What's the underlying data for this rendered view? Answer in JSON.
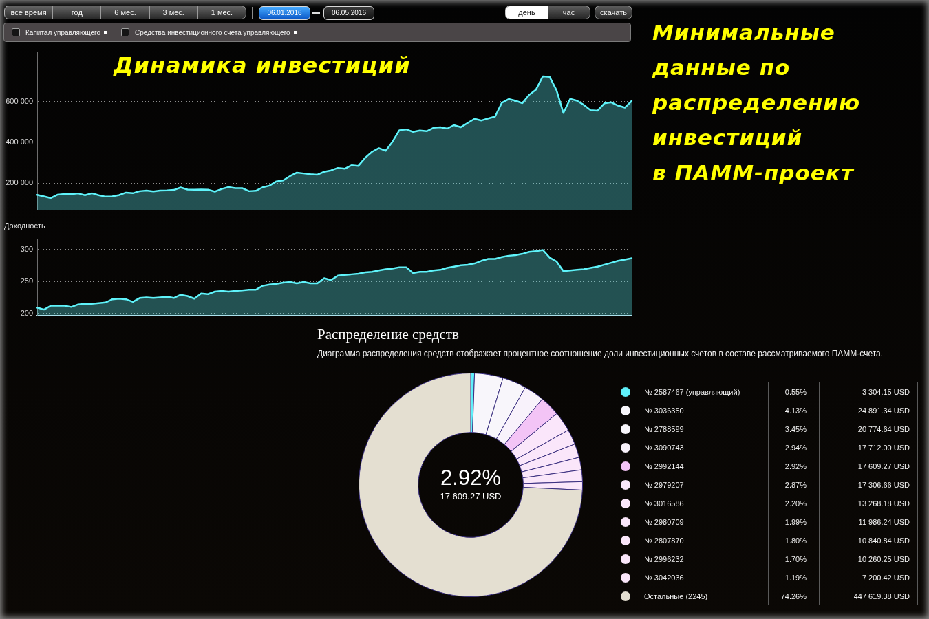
{
  "chart_data": [
    {
      "type": "area",
      "title": "Динамика инвестиций",
      "categories": [
        null,
        null,
        null,
        null,
        null,
        null,
        null,
        null,
        null,
        null,
        null,
        null,
        null,
        null,
        null,
        null,
        null,
        null,
        null,
        null,
        null,
        null,
        null,
        null,
        null,
        null,
        null,
        null,
        null,
        null,
        null,
        null,
        null,
        null,
        null,
        null,
        null,
        null,
        null,
        null,
        null,
        null,
        null,
        null,
        null,
        null,
        null,
        null,
        null,
        null,
        null,
        null,
        null,
        null,
        null,
        null,
        null,
        null,
        null,
        null,
        null,
        null,
        null,
        null,
        null,
        null,
        null,
        null,
        null,
        null,
        null,
        null,
        null,
        null,
        null,
        null,
        null,
        null,
        null,
        null,
        null,
        null,
        null,
        null,
        null,
        null,
        null,
        null
      ],
      "values": [
        142000,
        134000,
        126000,
        143000,
        146000,
        145000,
        149000,
        140000,
        150000,
        140000,
        133000,
        134000,
        141000,
        153000,
        150000,
        160000,
        163000,
        159000,
        163000,
        164000,
        166000,
        178000,
        168000,
        167000,
        168000,
        167000,
        158000,
        171000,
        180000,
        175000,
        175000,
        160000,
        162000,
        179000,
        187000,
        208000,
        213000,
        234000,
        251000,
        247000,
        243000,
        241000,
        255000,
        262000,
        274000,
        270000,
        287000,
        284000,
        324000,
        353000,
        371000,
        358000,
        403000,
        459000,
        463000,
        451000,
        458000,
        454000,
        471000,
        474000,
        467000,
        484000,
        474000,
        495000,
        515000,
        507000,
        517000,
        526000,
        594000,
        612000,
        604000,
        592000,
        633000,
        659000,
        724000,
        721000,
        655000,
        544000,
        613000,
        604000,
        583000,
        557000,
        555000,
        591000,
        596000,
        580000,
        570000,
        603000
      ],
      "color": "#5ff3fa",
      "ylim": [
        67000,
        840000
      ],
      "yticks": [
        {
          "value": 200000,
          "label": "200 000"
        },
        {
          "value": 400000,
          "label": "400 000"
        },
        {
          "value": 600000,
          "label": "600 000"
        }
      ],
      "grid": "y",
      "annotations": [
        "все время",
        "год",
        "6 мес.",
        "3 мес.",
        "1 мес.",
        "06.01.2016",
        "06.05.2016",
        "день",
        "час",
        "скачать",
        "Капитал управляющего",
        "Средства инвестиционного счета управляющего"
      ]
    },
    {
      "type": "other",
      "title": "Минимальные\nданные по\nраспределению\nинвестиций\nв ПАММ-проект"
    },
    {
      "type": "area",
      "ylabel": "Доходность",
      "categories": [
        null,
        null,
        null,
        null,
        null,
        null,
        null,
        null,
        null,
        null,
        null,
        null,
        null,
        null,
        null,
        null,
        null,
        null,
        null,
        null,
        null,
        null,
        null,
        null,
        null,
        null,
        null,
        null,
        null,
        null,
        null,
        null,
        null,
        null,
        null,
        null,
        null,
        null,
        null,
        null,
        null,
        null,
        null,
        null,
        null,
        null,
        null,
        null,
        null,
        null,
        null,
        null,
        null,
        null,
        null,
        null,
        null,
        null,
        null,
        null,
        null,
        null,
        null,
        null,
        null,
        null,
        null,
        null,
        null,
        null,
        null,
        null,
        null,
        null,
        null,
        null,
        null,
        null,
        null,
        null,
        null,
        null,
        null,
        null,
        null,
        null,
        null,
        null
      ],
      "values": [
        209,
        206,
        212,
        212,
        212,
        210,
        214,
        215,
        215,
        216,
        217,
        222,
        223,
        222,
        218,
        224,
        225,
        224,
        225,
        226,
        224,
        229,
        227,
        223,
        231,
        230,
        234,
        235,
        234,
        235,
        236,
        237,
        237,
        243,
        245,
        246,
        248,
        249,
        247,
        249,
        247,
        247,
        255,
        252,
        259,
        260,
        261,
        262,
        264,
        265,
        267,
        269,
        270,
        272,
        272,
        263,
        265,
        265,
        267,
        268,
        271,
        273,
        275,
        276,
        278,
        282,
        285,
        285,
        288,
        290,
        291,
        293,
        296,
        297,
        299,
        287,
        281,
        266,
        267,
        268,
        269,
        271,
        273,
        276,
        279,
        282,
        284,
        286
      ],
      "color": "#5ff3fa",
      "ylim": [
        196,
        315
      ],
      "yticks": [
        200,
        250,
        300
      ],
      "grid": "y"
    },
    {
      "type": "donut",
      "title": "Распределение средств",
      "subtitle": "Диаграмма распределения средств отображает процентное соотношение доли инвестиционных счетов в составе рассматриваемого ПАММ-счета.",
      "categories": [
        "№ 2587467 (управляющий)",
        "№ 3036350",
        "№ 2788599",
        "№ 3090743",
        "№ 2992144",
        "№ 2979207",
        "№ 3016586",
        "№ 2980709",
        "№ 2807870",
        "№ 2996232",
        "№ 3042036",
        "Остальные (2245)"
      ],
      "values": [
        3304.15,
        24891.34,
        20774.64,
        17712.0,
        17609.27,
        17306.66,
        13268.18,
        11986.24,
        10840.84,
        10260.25,
        7200.42,
        447619.38
      ],
      "colors": [
        "#5ff0fa",
        "#f8f6fb",
        "#f8f6fb",
        "#f8f2fb",
        "#f3c4f6",
        "#fae6fa",
        "#fae6fa",
        "#fae6fa",
        "#fae6fa",
        "#fae6fa",
        "#fae6fa",
        "#e4dfd1"
      ],
      "value_labels": [
        "3 304.15 USD",
        "24 891.34 USD",
        "20 774.64 USD",
        "17 712.00 USD",
        "17 609.27 USD",
        "17 306.66 USD",
        "13 268.18 USD",
        "11 986.24 USD",
        "10 840.84 USD",
        "10 260.25 USD",
        "7 200.42 USD",
        "447 619.38 USD"
      ],
      "legend": "right",
      "annotations": [
        "0.55%",
        "4.13%",
        "3.45%",
        "2.94%",
        "2.92%",
        "2.87%",
        "2.20%",
        "1.99%",
        "1.80%",
        "1.70%",
        "1.19%",
        "74.26%",
        "2.92%",
        "17 609.27 USD"
      ]
    }
  ]
}
